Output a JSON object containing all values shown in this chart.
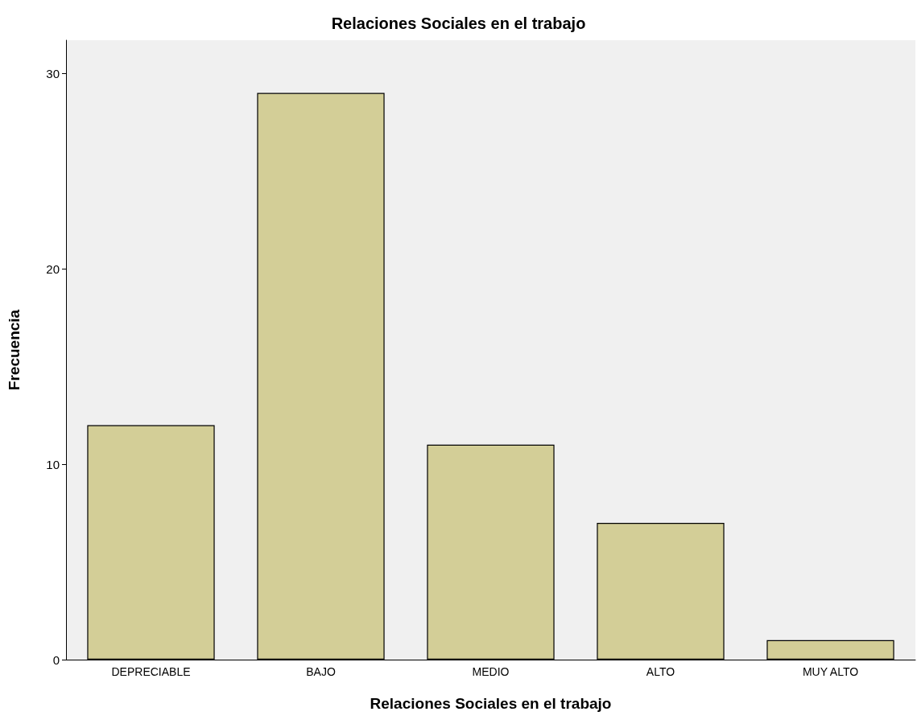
{
  "chart_data": {
    "type": "bar",
    "title": "Relaciones Sociales en el trabajo",
    "xlabel": "Relaciones Sociales en el trabajo",
    "ylabel": "Frecuencia",
    "categories": [
      "DEPRECIABLE",
      "BAJO",
      "MEDIO",
      "ALTO",
      "MUY ALTO"
    ],
    "values": [
      12,
      29,
      11,
      7,
      1
    ],
    "color": "#d3ce97",
    "ylim": [
      0,
      31.7
    ],
    "yticks": [
      0,
      10,
      20,
      30
    ],
    "grid": false
  }
}
